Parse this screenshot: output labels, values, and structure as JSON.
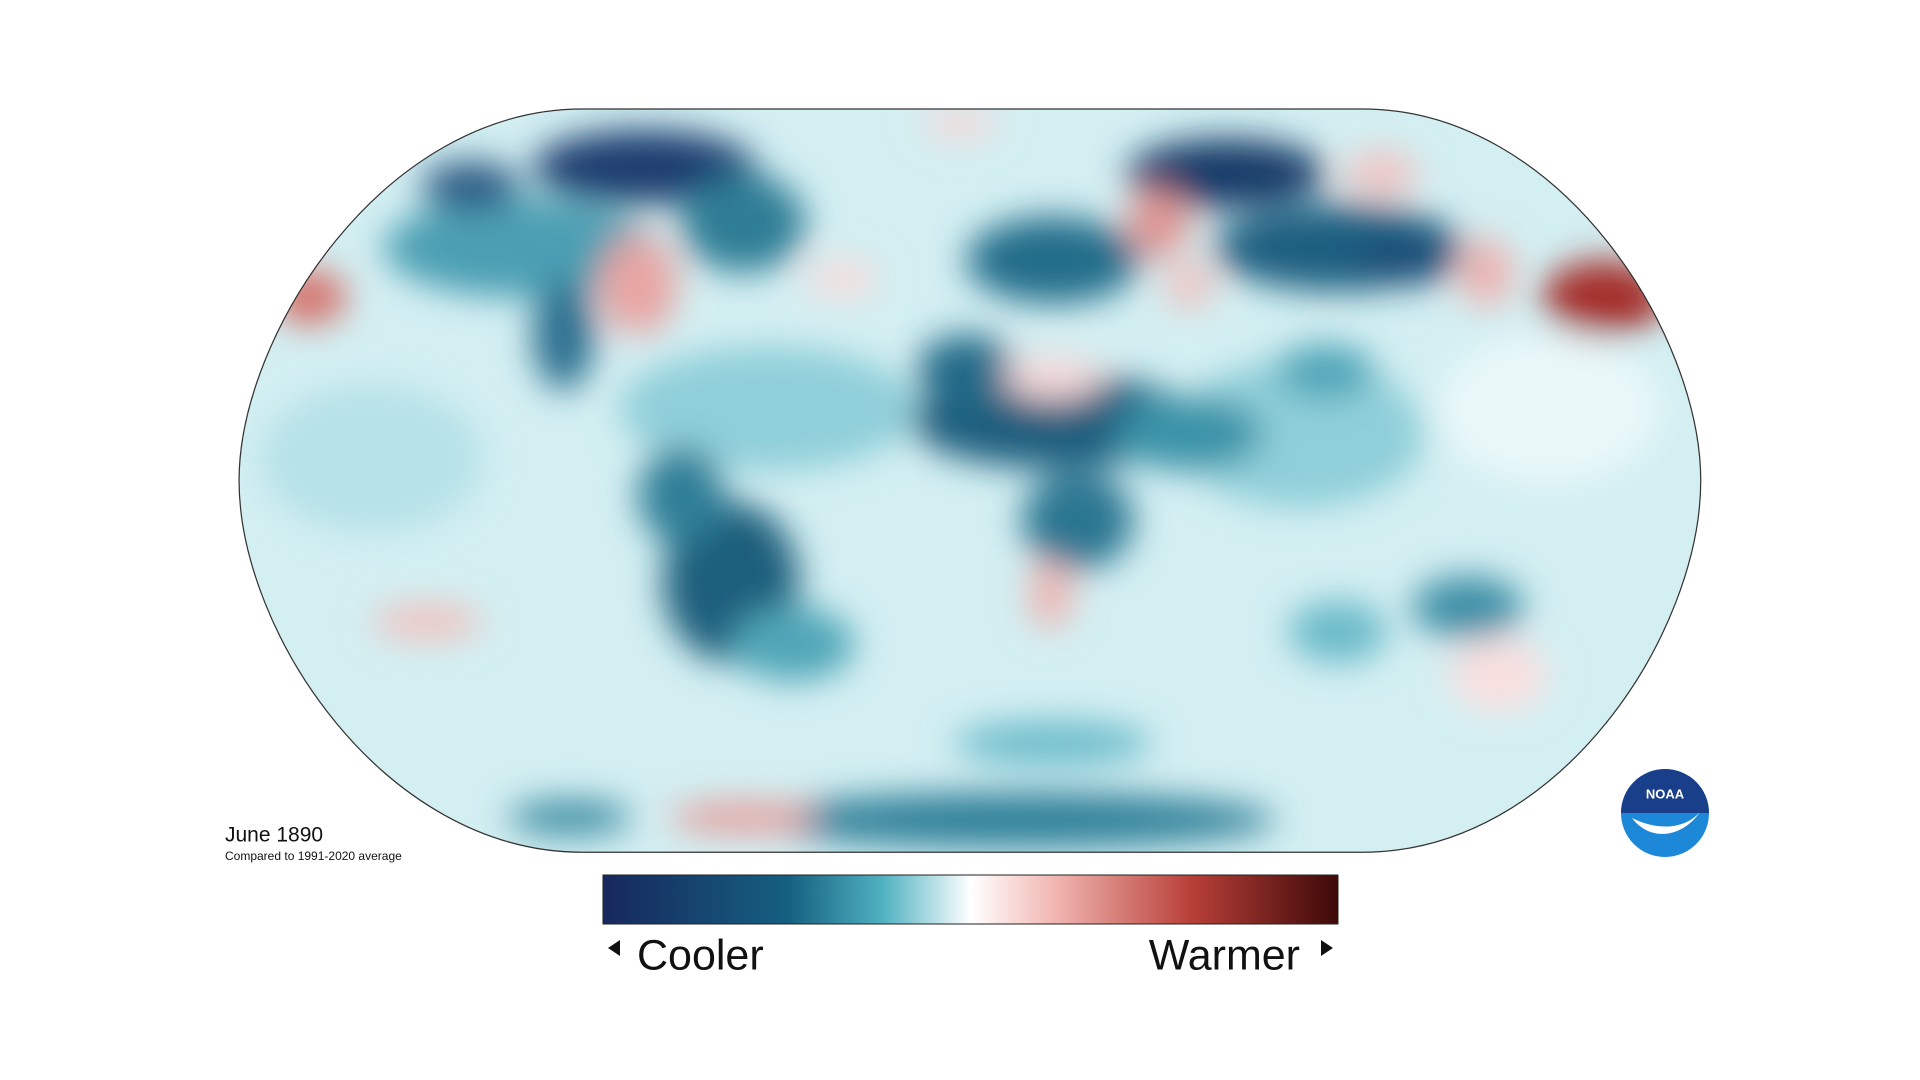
{
  "header": {
    "title": "June 1890",
    "subtitle": "Compared to 1991-2020 average"
  },
  "legend": {
    "low": "Cooler",
    "high": "Warmer"
  },
  "logo": {
    "text": "NOAA"
  }
}
